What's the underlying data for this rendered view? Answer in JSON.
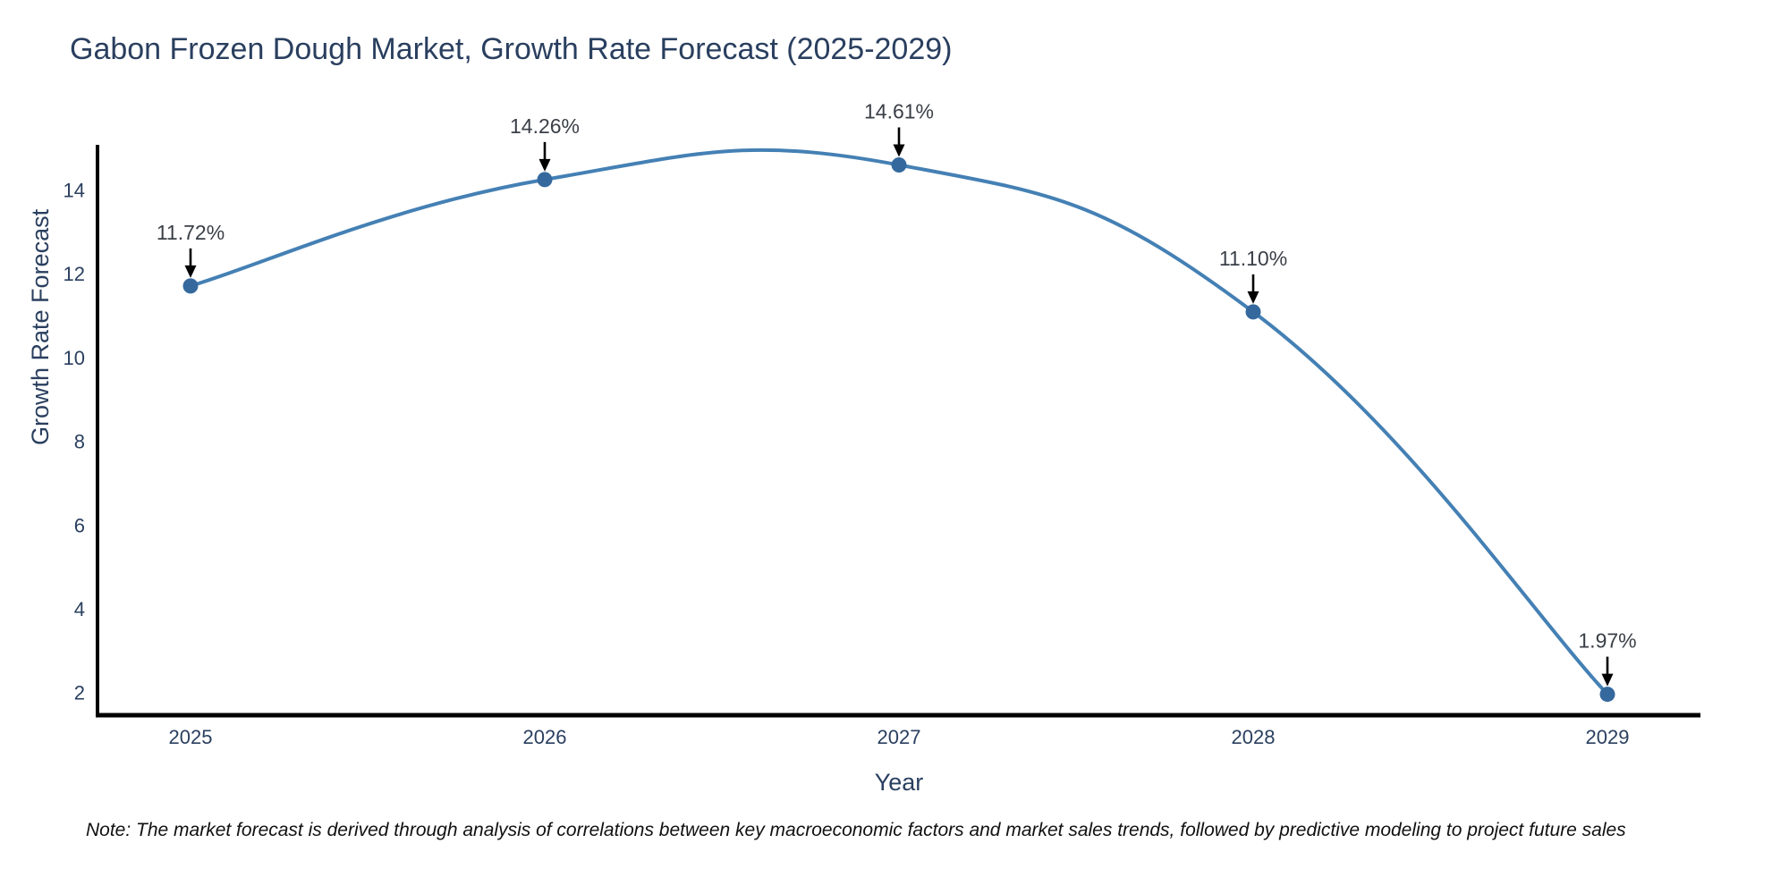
{
  "title": "Gabon Frozen Dough Market, Growth Rate Forecast (2025-2029)",
  "note": "Note: The market forecast is derived through analysis of correlations between key macroeconomic factors and market sales trends, followed by predictive modeling to project future sales",
  "chart_data": {
    "type": "line",
    "title": "Gabon Frozen Dough Market, Growth Rate Forecast (2025-2029)",
    "xlabel": "Year",
    "ylabel": "Growth Rate Forecast",
    "categories": [
      "2025",
      "2026",
      "2027",
      "2028",
      "2029"
    ],
    "values": [
      11.72,
      14.26,
      14.61,
      11.1,
      1.97
    ],
    "point_labels": [
      "11.72%",
      "14.26%",
      "14.61%",
      "11.10%",
      "1.97%"
    ],
    "yticks": [
      2,
      4,
      6,
      8,
      10,
      12,
      14
    ],
    "ylim": [
      1.47,
      15.09
    ],
    "line_shape": "spline",
    "grid": false,
    "legend": "none",
    "colors": {
      "line": "#4480b4",
      "marker": "#35699e",
      "axis": "#000000",
      "tick_text": "#2a3f5f",
      "annotation_text": "#3a3f47",
      "arrow": "#000000",
      "background": "#ffffff"
    }
  }
}
